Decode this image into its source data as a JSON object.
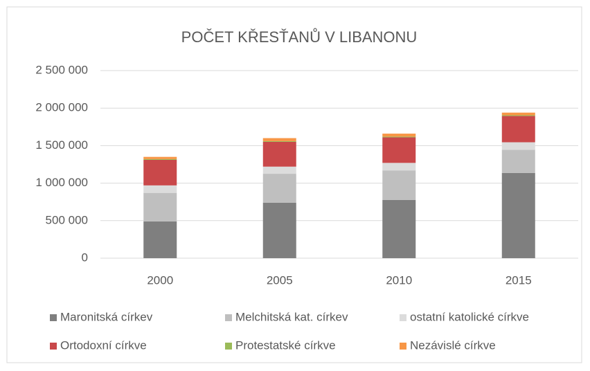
{
  "chart_data": {
    "type": "stacked_bar",
    "title": "POČET KŘESŤANŮ V LIBANONU",
    "categories": [
      "2000",
      "2005",
      "2010",
      "2015"
    ],
    "series": [
      {
        "name": "Maronitská církev",
        "color": "#7f7f7f",
        "values": [
          490000,
          740000,
          775000,
          1135000
        ]
      },
      {
        "name": "Melchitská kat. církev",
        "color": "#bfbfbf",
        "values": [
          380000,
          385000,
          395000,
          310000
        ]
      },
      {
        "name": "ostatní katolické církve",
        "color": "#dcdcdc",
        "values": [
          100000,
          95000,
          100000,
          100000
        ]
      },
      {
        "name": "Ortodoxní církve",
        "color": "#c9484a",
        "values": [
          340000,
          330000,
          340000,
          350000
        ]
      },
      {
        "name": "Protestatské církve",
        "color": "#9bbb59",
        "values": [
          10000,
          10000,
          10000,
          10000
        ]
      },
      {
        "name": "Nezávislé církve",
        "color": "#f79646",
        "values": [
          30000,
          40000,
          40000,
          35000
        ]
      }
    ],
    "ylim": [
      0,
      2500000
    ],
    "yticks": [
      0,
      {
        "value": 500000,
        "label": "500 000"
      },
      {
        "value": 1000000,
        "label": "1 000 000"
      },
      {
        "value": 1500000,
        "label": "1 500 000"
      },
      {
        "value": 2000000,
        "label": "2 000 000"
      },
      {
        "value": 2500000,
        "label": "2 500 000"
      }
    ],
    "grid": true,
    "legend": "bottom"
  }
}
